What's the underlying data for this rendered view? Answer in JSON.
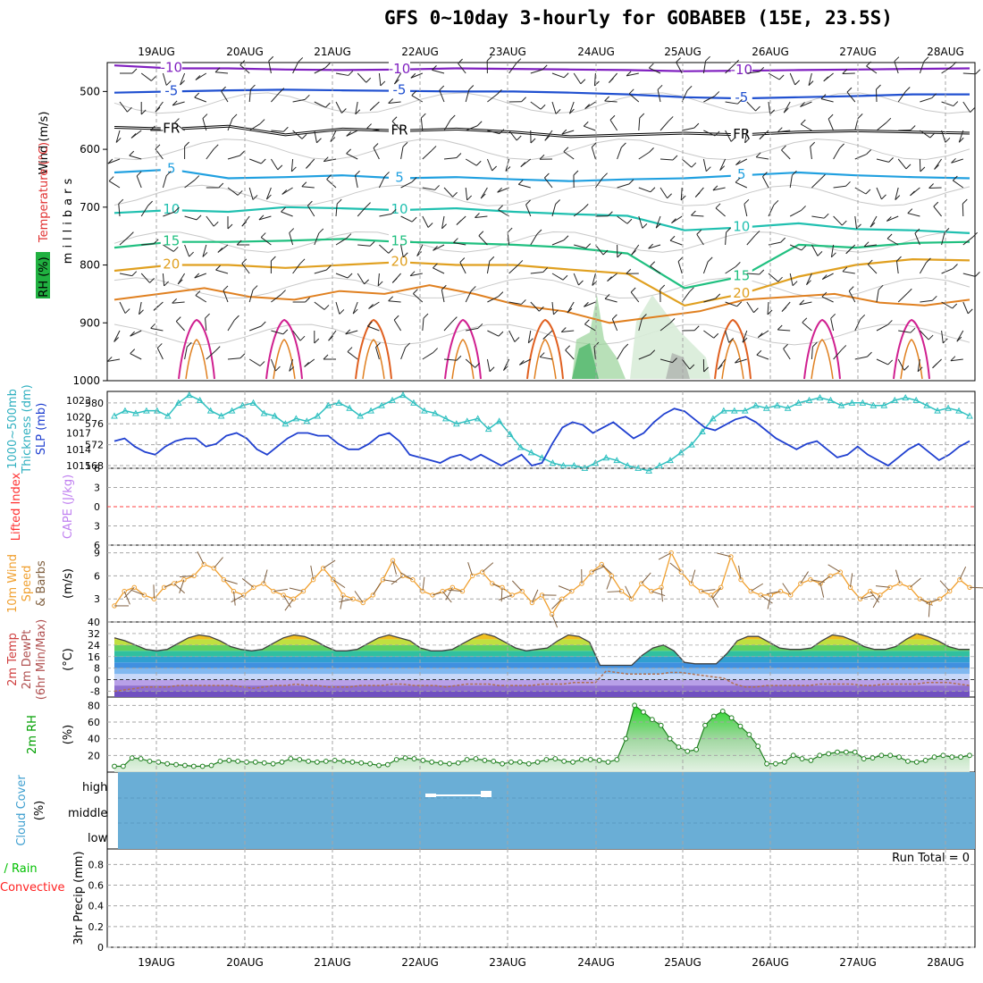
{
  "title": "GFS 0~10day 3-hourly for GOBABEB (15E, 23.5S)",
  "days": [
    "19AUG",
    "20AUG",
    "21AUG",
    "22AUG",
    "23AUG",
    "24AUG",
    "25AUG",
    "26AUG",
    "27AUG",
    "28AUG"
  ],
  "colors": {
    "grid": "#a6a6a6",
    "axis": "#000000",
    "temp_label": "#ff3030",
    "wind_label": "#000000",
    "rh_label": "#00b000",
    "thick": "#30c0c0",
    "slp": "#2040d0",
    "li_label": "#ff3030",
    "cape_label": "#c080f0",
    "wind10": "#f0a030",
    "rh2m": "#00a000",
    "cloud": "#6aaed6",
    "precip_total": "#00c000",
    "precip_conv": "#ff2020"
  },
  "chart_data": [
    {
      "type": "heatmap",
      "name_key": "upper_air",
      "ylabel": "millibars",
      "side_labels": {
        "wind": "Wind (m/s)",
        "temperature": "Temperature (°C)",
        "rh": "RH (%)"
      },
      "yticks": [
        500,
        600,
        700,
        800,
        900,
        1000
      ],
      "ylim": [
        450,
        1000
      ],
      "isotherm_labels": [
        {
          "text": "-10",
          "value": -10,
          "color": "#8020c0",
          "levels": [
            455,
            460,
            460,
            462,
            463,
            462,
            460,
            461,
            462,
            463,
            465,
            464,
            463,
            462,
            461,
            460
          ]
        },
        {
          "text": "-5",
          "value": -5,
          "color": "#2050d0",
          "levels": [
            502,
            500,
            498,
            497,
            498,
            499,
            500,
            500,
            502,
            505,
            510,
            512,
            510,
            508,
            505,
            505
          ]
        },
        {
          "text": "FR",
          "value": 0,
          "color": "#000000",
          "levels": [
            562,
            565,
            560,
            575,
            565,
            568,
            565,
            570,
            578,
            575,
            572,
            575,
            570,
            568,
            570,
            572
          ]
        },
        {
          "text": "5",
          "value": 5,
          "color": "#20a0e0",
          "levels": [
            640,
            635,
            650,
            648,
            645,
            650,
            648,
            652,
            655,
            652,
            650,
            645,
            640,
            645,
            648,
            650
          ]
        },
        {
          "text": "10",
          "value": 10,
          "color": "#20c0b0",
          "levels": [
            710,
            705,
            708,
            700,
            702,
            705,
            702,
            708,
            712,
            715,
            740,
            735,
            728,
            738,
            740,
            745
          ]
        },
        {
          "text": "15",
          "value": 15,
          "color": "#20c080",
          "levels": [
            770,
            760,
            760,
            758,
            755,
            760,
            762,
            765,
            770,
            780,
            840,
            820,
            765,
            770,
            762,
            760
          ]
        },
        {
          "text": "20",
          "value": 20,
          "color": "#e0a020",
          "levels": [
            810,
            800,
            800,
            805,
            800,
            795,
            800,
            800,
            808,
            815,
            870,
            850,
            820,
            800,
            790,
            792
          ]
        }
      ]
    },
    {
      "type": "line",
      "name_key": "thickness_slp",
      "ylabel_left": "1000~500mb Thickness (dm)",
      "ylabel_right": "SLP (mb)",
      "left_ticks": [
        568,
        572,
        576,
        580
      ],
      "right_ticks": [
        1011,
        1014,
        1017,
        1020,
        1023
      ],
      "series": [
        {
          "name": "1000~500mb Thickness",
          "values": [
            577.5,
            578.5,
            578,
            578.5,
            578.5,
            577.5,
            580,
            581.5,
            580.5,
            578.5,
            577.5,
            578.5,
            579.5,
            580,
            578,
            577.5,
            576,
            577,
            576.5,
            577.5,
            579.5,
            580,
            579,
            577.5,
            578.5,
            579.5,
            580.5,
            581.5,
            580,
            578.5,
            578,
            577,
            576,
            576.5,
            577,
            575,
            576.5,
            574,
            571.5,
            570.5,
            569.5,
            568.5,
            568,
            568,
            567.5,
            568.5,
            569.5,
            569,
            568,
            567.5,
            567,
            568,
            569,
            570.5,
            572,
            574.5,
            577,
            578.5,
            578.5,
            578.5,
            579.5,
            579,
            579.5,
            579,
            580,
            580.5,
            581,
            580.5,
            579.5,
            580,
            580,
            579.5,
            579.5,
            580.5,
            581,
            580.5,
            579.5,
            578.5,
            579,
            578.5,
            577.5
          ]
        },
        {
          "name": "SLP",
          "values": [
            1015.5,
            1016,
            1014.5,
            1013.5,
            1013,
            1014.5,
            1015.5,
            1016,
            1016,
            1014.5,
            1015,
            1016.5,
            1017,
            1016,
            1014,
            1013,
            1014.5,
            1016,
            1017,
            1017,
            1016.5,
            1016.5,
            1015,
            1014,
            1014,
            1015,
            1016.5,
            1017,
            1015.5,
            1013,
            1012.5,
            1012,
            1011.5,
            1012.5,
            1013,
            1012,
            1013,
            1012,
            1011,
            1012,
            1013,
            1011,
            1011.5,
            1015,
            1018,
            1019,
            1018.5,
            1017,
            1018,
            1019,
            1017.5,
            1016,
            1017,
            1019,
            1020.5,
            1021.5,
            1021,
            1019.5,
            1018,
            1017.5,
            1018.5,
            1019.5,
            1020,
            1019,
            1017.5,
            1016,
            1015,
            1014,
            1015,
            1015.5,
            1014,
            1012.5,
            1013,
            1014.5,
            1013,
            1012,
            1011,
            1012.5,
            1014,
            1015,
            1013.5,
            1012,
            1013,
            1014.5,
            1015.5
          ]
        }
      ]
    },
    {
      "type": "line",
      "name_key": "stability",
      "ylabel_left": "Lifted Index",
      "ylabel_right": "CAPE (J/kg)",
      "left_ticks": [
        -6,
        -3,
        0,
        3,
        6
      ],
      "series": [
        {
          "name": "Lifted Index",
          "values": []
        },
        {
          "name": "CAPE",
          "values": []
        }
      ]
    },
    {
      "type": "line",
      "name_key": "wind10m",
      "ylabel": "10m Wind Speed & Barbs (m/s)",
      "yticks": [
        3,
        6,
        9
      ],
      "ylim": [
        0,
        10
      ],
      "series": [
        {
          "name": "10m Wind Speed",
          "values": [
            2.1,
            4,
            4.5,
            3.5,
            3,
            4.5,
            5,
            5.5,
            6,
            7.5,
            7,
            5.5,
            4,
            3.5,
            4.5,
            5,
            4,
            3.5,
            3,
            4,
            5.5,
            7,
            5.5,
            3.5,
            3,
            2.5,
            3.5,
            5.5,
            8,
            6,
            5.5,
            4,
            3.5,
            4,
            4.5,
            4,
            6,
            6.5,
            5,
            4.5,
            3.5,
            4,
            2.5,
            3.5,
            1,
            3,
            4,
            5,
            6.5,
            7.5,
            6,
            4,
            3,
            5,
            4,
            4.5,
            9,
            6.5,
            5,
            4,
            3.5,
            4.5,
            8.5,
            5.5,
            4,
            3.5,
            3.5,
            4,
            3.5,
            5,
            5.5,
            5,
            6,
            6.5,
            4.5,
            3,
            4,
            3.5,
            4.5,
            5,
            4.5,
            3,
            2.5,
            3,
            4,
            5.5,
            4.5
          ]
        }
      ]
    },
    {
      "type": "area",
      "name_key": "temp2m",
      "ylabel": "2m Temp / 2m DewPt (6hr Min/Max) (°C)",
      "yticks": [
        -8,
        0,
        8,
        16,
        24,
        32,
        40
      ],
      "ylim": [
        -12,
        40
      ],
      "series": [
        {
          "name": "2m Temp",
          "values": [
            29,
            27,
            24,
            21,
            20,
            21,
            25,
            29,
            31,
            30,
            27,
            23,
            21,
            20,
            21,
            25,
            29,
            31,
            30,
            27,
            23,
            20,
            20,
            21,
            25,
            29,
            31,
            29,
            27,
            22,
            20,
            20,
            21,
            25,
            29,
            32,
            30,
            26,
            22,
            20,
            21,
            22,
            27,
            31,
            30,
            26,
            10,
            10,
            10,
            10,
            17,
            22,
            24,
            20,
            12,
            11,
            11,
            11,
            18,
            27,
            30,
            30,
            26,
            22,
            21,
            21,
            22,
            27,
            31,
            30,
            27,
            23,
            21,
            21,
            23,
            28,
            32,
            30,
            27,
            23,
            21,
            21
          ]
        },
        {
          "name": "2m DewPt",
          "values": [
            -8,
            -7,
            -6,
            -5,
            -5,
            -5,
            -4,
            -4,
            -4,
            -4,
            -4,
            -4,
            -5,
            -6,
            -5,
            -4,
            -4,
            -3,
            -4,
            -4,
            -5,
            -5,
            -5,
            -4,
            -4,
            -4,
            -3,
            -3,
            -4,
            -4,
            -4,
            -5,
            -4,
            -3,
            -3,
            -3,
            -4,
            -4,
            -4,
            -4,
            -3,
            -3,
            -3,
            -2,
            -2,
            -2,
            6,
            5,
            4,
            4,
            4,
            4,
            5,
            5,
            4,
            3,
            2,
            1,
            -3,
            -5,
            -5,
            -4,
            -4,
            -4,
            -4,
            -4,
            -3,
            -3,
            -3,
            -3,
            -4,
            -4,
            -3,
            -3,
            -3,
            -3,
            -2,
            -2,
            -2,
            -3,
            -4
          ]
        }
      ]
    },
    {
      "type": "area",
      "name_key": "rh2m",
      "ylabel": "2m RH (%)",
      "yticks": [
        20,
        40,
        60,
        80
      ],
      "ylim": [
        0,
        90
      ],
      "series": [
        {
          "name": "2m RH",
          "values": [
            7,
            7,
            17,
            16,
            13,
            12,
            10,
            9,
            8,
            7,
            7,
            8,
            13,
            14,
            13,
            12,
            12,
            11,
            10,
            12,
            16,
            15,
            13,
            12,
            13,
            14,
            13,
            12,
            11,
            10,
            8,
            9,
            15,
            17,
            16,
            14,
            12,
            11,
            10,
            11,
            15,
            16,
            14,
            13,
            10,
            12,
            12,
            10,
            12,
            15,
            16,
            13,
            12,
            15,
            15,
            14,
            12,
            15,
            40,
            80,
            72,
            63,
            56,
            40,
            30,
            25,
            27,
            56,
            67,
            73,
            65,
            55,
            45,
            31,
            10,
            10,
            12,
            20,
            16,
            14,
            20,
            22,
            24,
            24,
            24,
            16,
            17,
            20,
            20,
            18,
            13,
            12,
            14,
            18,
            20,
            18,
            18,
            20
          ]
        }
      ]
    },
    {
      "type": "heatmap",
      "name_key": "cloud",
      "ylabel": "Cloud Cover (%)",
      "levels": [
        "high",
        "middle",
        "low"
      ]
    },
    {
      "type": "bar",
      "name_key": "precip",
      "ylabel": "3hr Precip (mm)",
      "legend": [
        "Total / Rain",
        "Convective"
      ],
      "yticks": [
        0,
        0.2,
        0.4,
        0.6,
        0.8
      ],
      "ylim": [
        0,
        0.95
      ],
      "run_total_label": "Run Total = 0",
      "values": []
    }
  ],
  "labels": {
    "upper_wind": "Wind (m/s)",
    "upper_temp": "Temperature (°C)",
    "upper_rh": "RH (%)",
    "upper_mb": "millibars",
    "thick1": "1000~500mb",
    "thick2": "Thickness (dm)",
    "slp": "SLP (mb)",
    "li": "Lifted Index",
    "cape": "CAPE (J/kg)",
    "wind10a": "10m Wind",
    "wind10b": "Speed",
    "wind10c": "& Barbs",
    "wind10d": "(m/s)",
    "t2a": "2m Temp",
    "t2b": "2m DewPt",
    "t2c": "(6hr Min/Max)",
    "t2d": "(°C)",
    "rh2a": "2m RH",
    "rh2b": "(%)",
    "cc1": "Cloud Cover",
    "cc2": "(%)",
    "cc_high": "high",
    "cc_middle": "middle",
    "cc_low": "low",
    "pr_total": "Total / Rain",
    "pr_conv": "Convective",
    "pr_axis": "3hr Precip (mm)",
    "run_total": "Run Total = 0"
  }
}
